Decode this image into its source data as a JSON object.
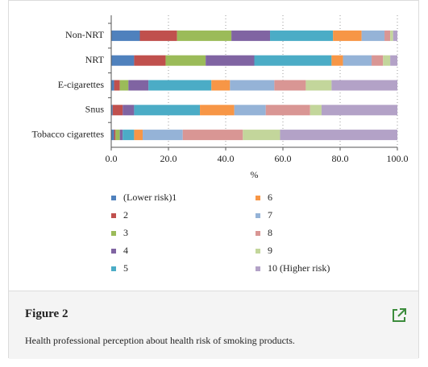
{
  "chart_data": {
    "type": "stacked-barh",
    "categories": [
      "Non-NRT",
      "NRT",
      "E-cigarettes",
      "Snus",
      "Tobacco cigarettes"
    ],
    "series": [
      {
        "name": "(Lower risk)1",
        "color": "#4f81bd",
        "values": [
          10,
          8,
          1,
          0.5,
          1
        ]
      },
      {
        "name": "2",
        "color": "#c0504d",
        "values": [
          13,
          11,
          2,
          3.5,
          0.5
        ]
      },
      {
        "name": "3",
        "color": "#9bbb59",
        "values": [
          19,
          14,
          3,
          0,
          1.5
        ]
      },
      {
        "name": "4",
        "color": "#8064a2",
        "values": [
          13.5,
          17,
          7,
          4,
          1
        ]
      },
      {
        "name": "5",
        "color": "#4bacc6",
        "values": [
          22,
          27,
          22,
          23,
          4
        ]
      },
      {
        "name": "6",
        "color": "#f79646",
        "values": [
          10,
          4,
          6.5,
          12,
          3
        ]
      },
      {
        "name": "7",
        "color": "#95b3d7",
        "values": [
          8,
          10,
          15.5,
          11,
          14
        ]
      },
      {
        "name": "8",
        "color": "#d99694",
        "values": [
          2,
          4,
          11,
          15.5,
          21
        ]
      },
      {
        "name": "9",
        "color": "#c3d69b",
        "values": [
          1,
          2.5,
          9,
          4,
          13
        ]
      },
      {
        "name": "10 (Higher risk)",
        "color": "#b3a2c7",
        "values": [
          1.5,
          2.5,
          23,
          26.5,
          41
        ]
      }
    ],
    "xlabel": "%",
    "xlim": [
      0,
      100
    ],
    "xticks": [
      {
        "value": 0,
        "label": "0.0"
      },
      {
        "value": 20,
        "label": "20.0"
      },
      {
        "value": 40,
        "label": "40.0"
      },
      {
        "value": 60,
        "label": "60.0"
      },
      {
        "value": 80,
        "label": "80.0"
      },
      {
        "value": 100,
        "label": "100.0"
      }
    ],
    "grid": true
  },
  "figure": {
    "label": "Figure 2",
    "caption": "Health professional perception about health risk of smoking products."
  }
}
